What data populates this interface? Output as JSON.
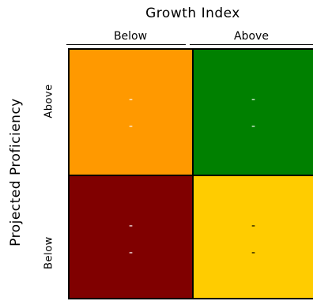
{
  "x_axis": {
    "title": "Growth Index",
    "labels": {
      "left": "Below",
      "right": "Above"
    }
  },
  "y_axis": {
    "title": "Projected Proficiency",
    "labels": {
      "top": "Above",
      "bottom": "Below"
    }
  },
  "quadrants": {
    "top_left": {
      "color": "#FF9900",
      "text_color": "#FFFFFF",
      "line1": "-",
      "line2": "-"
    },
    "top_right": {
      "color": "#008000",
      "text_color": "#FFFFFF",
      "line1": "-",
      "line2": "-"
    },
    "bottom_left": {
      "color": "#800000",
      "text_color": "#FFFFFF",
      "line1": "-",
      "line2": "-"
    },
    "bottom_right": {
      "color": "#FFCC00",
      "text_color": "#000000",
      "line1": "-",
      "line2": "-"
    }
  }
}
